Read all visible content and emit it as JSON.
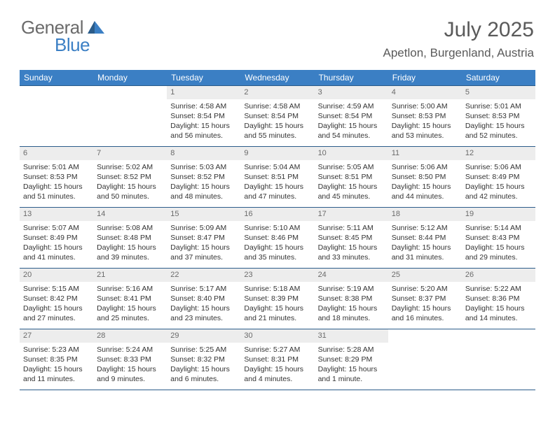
{
  "brand": {
    "part1": "General",
    "part2": "Blue"
  },
  "title": "July 2025",
  "location": "Apetlon, Burgenland, Austria",
  "colors": {
    "header_bg": "#3b7fc4",
    "header_text": "#ffffff",
    "rule": "#2b5c8a",
    "daynum_bg": "#ededed",
    "daynum_text": "#6b6b6b",
    "body_text": "#333333",
    "title_text": "#5a5a5a",
    "page_bg": "#ffffff"
  },
  "day_names": [
    "Sunday",
    "Monday",
    "Tuesday",
    "Wednesday",
    "Thursday",
    "Friday",
    "Saturday"
  ],
  "weeks": [
    [
      {
        "n": "",
        "empty": true
      },
      {
        "n": "",
        "empty": true
      },
      {
        "n": "1",
        "sunrise": "4:58 AM",
        "sunset": "8:54 PM",
        "daylight": "15 hours and 56 minutes."
      },
      {
        "n": "2",
        "sunrise": "4:58 AM",
        "sunset": "8:54 PM",
        "daylight": "15 hours and 55 minutes."
      },
      {
        "n": "3",
        "sunrise": "4:59 AM",
        "sunset": "8:54 PM",
        "daylight": "15 hours and 54 minutes."
      },
      {
        "n": "4",
        "sunrise": "5:00 AM",
        "sunset": "8:53 PM",
        "daylight": "15 hours and 53 minutes."
      },
      {
        "n": "5",
        "sunrise": "5:01 AM",
        "sunset": "8:53 PM",
        "daylight": "15 hours and 52 minutes."
      }
    ],
    [
      {
        "n": "6",
        "sunrise": "5:01 AM",
        "sunset": "8:53 PM",
        "daylight": "15 hours and 51 minutes."
      },
      {
        "n": "7",
        "sunrise": "5:02 AM",
        "sunset": "8:52 PM",
        "daylight": "15 hours and 50 minutes."
      },
      {
        "n": "8",
        "sunrise": "5:03 AM",
        "sunset": "8:52 PM",
        "daylight": "15 hours and 48 minutes."
      },
      {
        "n": "9",
        "sunrise": "5:04 AM",
        "sunset": "8:51 PM",
        "daylight": "15 hours and 47 minutes."
      },
      {
        "n": "10",
        "sunrise": "5:05 AM",
        "sunset": "8:51 PM",
        "daylight": "15 hours and 45 minutes."
      },
      {
        "n": "11",
        "sunrise": "5:06 AM",
        "sunset": "8:50 PM",
        "daylight": "15 hours and 44 minutes."
      },
      {
        "n": "12",
        "sunrise": "5:06 AM",
        "sunset": "8:49 PM",
        "daylight": "15 hours and 42 minutes."
      }
    ],
    [
      {
        "n": "13",
        "sunrise": "5:07 AM",
        "sunset": "8:49 PM",
        "daylight": "15 hours and 41 minutes."
      },
      {
        "n": "14",
        "sunrise": "5:08 AM",
        "sunset": "8:48 PM",
        "daylight": "15 hours and 39 minutes."
      },
      {
        "n": "15",
        "sunrise": "5:09 AM",
        "sunset": "8:47 PM",
        "daylight": "15 hours and 37 minutes."
      },
      {
        "n": "16",
        "sunrise": "5:10 AM",
        "sunset": "8:46 PM",
        "daylight": "15 hours and 35 minutes."
      },
      {
        "n": "17",
        "sunrise": "5:11 AM",
        "sunset": "8:45 PM",
        "daylight": "15 hours and 33 minutes."
      },
      {
        "n": "18",
        "sunrise": "5:12 AM",
        "sunset": "8:44 PM",
        "daylight": "15 hours and 31 minutes."
      },
      {
        "n": "19",
        "sunrise": "5:14 AM",
        "sunset": "8:43 PM",
        "daylight": "15 hours and 29 minutes."
      }
    ],
    [
      {
        "n": "20",
        "sunrise": "5:15 AM",
        "sunset": "8:42 PM",
        "daylight": "15 hours and 27 minutes."
      },
      {
        "n": "21",
        "sunrise": "5:16 AM",
        "sunset": "8:41 PM",
        "daylight": "15 hours and 25 minutes."
      },
      {
        "n": "22",
        "sunrise": "5:17 AM",
        "sunset": "8:40 PM",
        "daylight": "15 hours and 23 minutes."
      },
      {
        "n": "23",
        "sunrise": "5:18 AM",
        "sunset": "8:39 PM",
        "daylight": "15 hours and 21 minutes."
      },
      {
        "n": "24",
        "sunrise": "5:19 AM",
        "sunset": "8:38 PM",
        "daylight": "15 hours and 18 minutes."
      },
      {
        "n": "25",
        "sunrise": "5:20 AM",
        "sunset": "8:37 PM",
        "daylight": "15 hours and 16 minutes."
      },
      {
        "n": "26",
        "sunrise": "5:22 AM",
        "sunset": "8:36 PM",
        "daylight": "15 hours and 14 minutes."
      }
    ],
    [
      {
        "n": "27",
        "sunrise": "5:23 AM",
        "sunset": "8:35 PM",
        "daylight": "15 hours and 11 minutes."
      },
      {
        "n": "28",
        "sunrise": "5:24 AM",
        "sunset": "8:33 PM",
        "daylight": "15 hours and 9 minutes."
      },
      {
        "n": "29",
        "sunrise": "5:25 AM",
        "sunset": "8:32 PM",
        "daylight": "15 hours and 6 minutes."
      },
      {
        "n": "30",
        "sunrise": "5:27 AM",
        "sunset": "8:31 PM",
        "daylight": "15 hours and 4 minutes."
      },
      {
        "n": "31",
        "sunrise": "5:28 AM",
        "sunset": "8:29 PM",
        "daylight": "15 hours and 1 minute."
      },
      {
        "n": "",
        "empty": true
      },
      {
        "n": "",
        "empty": true
      }
    ]
  ],
  "labels": {
    "sunrise": "Sunrise: ",
    "sunset": "Sunset: ",
    "daylight": "Daylight: "
  }
}
